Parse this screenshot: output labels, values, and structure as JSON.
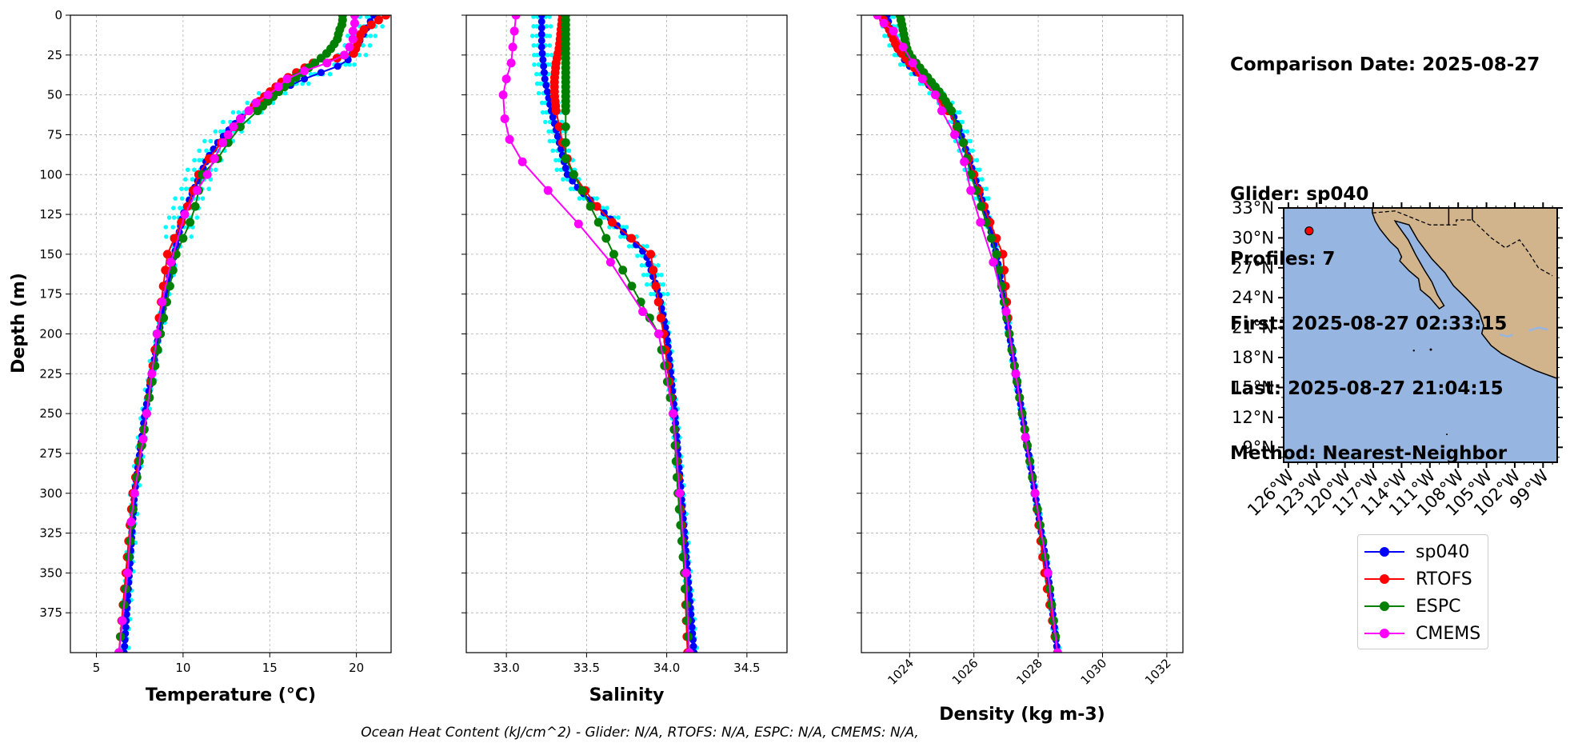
{
  "info": {
    "comparison_date": "Comparison Date: 2025-08-27",
    "glider": "Glider: sp040",
    "profiles": "Profiles: 7",
    "first": "First: 2025-08-27 02:33:15",
    "last": "Last: 2025-08-27 21:04:15",
    "method": "Method: Nearest-Neighbor"
  },
  "footer": "Ocean Heat Content (kJ/cm^2) - Glider: N/A,  RTOFS: N/A,  ESPC: N/A,  CMEMS: N/A,",
  "colors": {
    "glider_profiles": "#00ffff",
    "sp040": "#0000ff",
    "RTOFS": "#ff0000",
    "ESPC": "#008000",
    "CMEMS": "#ff00ff",
    "ocean": "#96b6e1",
    "land": "#d2b48c"
  },
  "legend": [
    "sp040",
    "RTOFS",
    "ESPC",
    "CMEMS"
  ],
  "chart_data": [
    {
      "type": "line",
      "xlabel": "Temperature (°C)",
      "ylabel": "Depth (m)",
      "xlim": [
        3.5,
        22
      ],
      "ylim": [
        400,
        0
      ],
      "xticks": [
        5,
        10,
        15,
        20
      ],
      "yticks": [
        0,
        25,
        50,
        75,
        100,
        125,
        150,
        175,
        200,
        225,
        250,
        275,
        300,
        325,
        350,
        375
      ],
      "grid": true,
      "series": [
        {
          "name": "sp040",
          "depth": [
            0,
            10,
            20,
            30,
            40,
            50,
            60,
            70,
            80,
            90,
            100,
            125,
            150,
            175,
            200,
            250,
            300,
            350,
            400
          ],
          "values": [
            21.0,
            20.5,
            20.0,
            19.4,
            17.0,
            15.0,
            13.8,
            12.8,
            12.0,
            11.4,
            11.0,
            10.0,
            9.5,
            9.0,
            8.6,
            7.8,
            7.2,
            6.9,
            6.6
          ]
        },
        {
          "name": "RTOFS",
          "depth": [
            0,
            10,
            20,
            25,
            30,
            40,
            50,
            60,
            70,
            80,
            90,
            100,
            125,
            150,
            200,
            250,
            300,
            350,
            400
          ],
          "values": [
            21.7,
            20.3,
            20.0,
            19.8,
            17.5,
            15.9,
            14.8,
            13.8,
            13.0,
            12.2,
            11.5,
            10.9,
            10.1,
            9.1,
            8.5,
            7.9,
            7.1,
            6.7,
            6.3
          ]
        },
        {
          "name": "ESPC",
          "depth": [
            0,
            5,
            10,
            15,
            20,
            25,
            30,
            40,
            50,
            60,
            70,
            80,
            90,
            100,
            125,
            150,
            200,
            250,
            300,
            350,
            400
          ],
          "values": [
            19.2,
            19.2,
            19.0,
            18.9,
            18.6,
            18.2,
            17.6,
            16.4,
            15.3,
            14.3,
            13.3,
            12.6,
            12.0,
            11.1,
            10.6,
            9.6,
            8.7,
            7.9,
            7.2,
            6.8,
            6.3
          ]
        },
        {
          "name": "CMEMS",
          "depth": [
            0,
            5,
            10,
            15,
            20,
            25,
            30,
            35,
            40,
            45,
            50,
            55,
            60,
            65,
            70,
            75,
            80,
            90,
            100,
            110,
            125,
            155,
            180,
            200,
            225,
            250,
            266,
            300,
            318,
            350,
            380,
            400
          ],
          "values": [
            19.9,
            19.9,
            19.8,
            19.8,
            19.6,
            19.3,
            18.3,
            17.0,
            16.0,
            15.5,
            14.9,
            14.2,
            13.8,
            13.3,
            12.9,
            12.6,
            12.3,
            11.8,
            11.4,
            10.8,
            10.1,
            9.3,
            8.8,
            8.5,
            8.2,
            7.9,
            7.7,
            7.2,
            7.0,
            6.8,
            6.5,
            6.3
          ]
        }
      ]
    },
    {
      "type": "line",
      "xlabel": "Salinity",
      "xlim": [
        32.75,
        34.75
      ],
      "ylim": [
        400,
        0
      ],
      "xticks": [
        33.0,
        33.5,
        34.0,
        34.5
      ],
      "grid": true,
      "series": [
        {
          "name": "sp040",
          "depth": [
            0,
            20,
            40,
            60,
            80,
            100,
            110,
            125,
            150,
            175,
            200,
            250,
            300,
            350,
            400
          ],
          "values": [
            33.22,
            33.22,
            33.24,
            33.28,
            33.33,
            33.38,
            33.46,
            33.62,
            33.87,
            33.95,
            34.0,
            34.05,
            34.09,
            34.13,
            34.17
          ]
        },
        {
          "name": "RTOFS",
          "depth": [
            0,
            10,
            20,
            30,
            40,
            50,
            60,
            70,
            80,
            90,
            100,
            125,
            150,
            200,
            250,
            300,
            350,
            400
          ],
          "values": [
            33.35,
            33.34,
            33.33,
            33.31,
            33.3,
            33.3,
            33.31,
            33.33,
            33.35,
            33.38,
            33.42,
            33.6,
            33.9,
            33.98,
            34.04,
            34.08,
            34.11,
            34.13
          ]
        },
        {
          "name": "ESPC",
          "depth": [
            0,
            10,
            20,
            30,
            40,
            50,
            60,
            70,
            80,
            90,
            100,
            125,
            150,
            200,
            250,
            300,
            350,
            400
          ],
          "values": [
            33.37,
            33.37,
            33.37,
            33.37,
            33.37,
            33.37,
            33.37,
            33.37,
            33.37,
            33.37,
            33.42,
            33.55,
            33.67,
            33.95,
            34.04,
            34.07,
            34.11,
            34.14
          ]
        },
        {
          "name": "CMEMS",
          "depth": [
            0,
            10,
            20,
            30,
            40,
            50,
            65,
            78,
            92,
            110,
            131,
            155,
            186,
            200,
            250,
            300,
            350,
            400
          ],
          "values": [
            33.06,
            33.05,
            33.04,
            33.03,
            33.0,
            32.98,
            32.99,
            33.02,
            33.1,
            33.26,
            33.45,
            33.65,
            33.85,
            33.95,
            34.04,
            34.08,
            34.12,
            34.14
          ]
        }
      ]
    },
    {
      "type": "line",
      "xlabel": "Density (kg m-3)",
      "xlim": [
        1022.5,
        1032.5
      ],
      "ylim": [
        400,
        0
      ],
      "xticks": [
        1024,
        1026,
        1028,
        1030,
        1032
      ],
      "grid": true,
      "series": [
        {
          "name": "sp040",
          "depth": [
            0,
            10,
            20,
            30,
            40,
            50,
            60,
            75,
            100,
            125,
            150,
            175,
            200,
            250,
            300,
            350,
            400
          ],
          "values": [
            1023.3,
            1023.4,
            1023.6,
            1023.9,
            1024.4,
            1024.9,
            1025.3,
            1025.6,
            1026.0,
            1026.4,
            1026.7,
            1026.9,
            1027.1,
            1027.5,
            1027.9,
            1028.3,
            1028.6
          ]
        },
        {
          "name": "RTOFS",
          "depth": [
            0,
            10,
            20,
            30,
            40,
            50,
            60,
            75,
            100,
            125,
            150,
            200,
            250,
            300,
            350,
            400
          ],
          "values": [
            1023.1,
            1023.4,
            1023.6,
            1024.0,
            1024.5,
            1024.9,
            1025.2,
            1025.6,
            1026.0,
            1026.4,
            1026.9,
            1027.1,
            1027.5,
            1027.9,
            1028.2,
            1028.6
          ]
        },
        {
          "name": "ESPC",
          "depth": [
            0,
            10,
            20,
            25,
            30,
            40,
            50,
            60,
            75,
            100,
            125,
            150,
            200,
            250,
            300,
            350,
            400
          ],
          "values": [
            1023.7,
            1023.8,
            1023.9,
            1024.0,
            1024.2,
            1024.6,
            1025.0,
            1025.3,
            1025.6,
            1025.9,
            1026.3,
            1026.7,
            1027.1,
            1027.5,
            1027.9,
            1028.3,
            1028.6
          ]
        },
        {
          "name": "CMEMS",
          "depth": [
            0,
            5,
            10,
            20,
            30,
            40,
            50,
            60,
            75,
            92,
            110,
            130,
            155,
            186,
            225,
            265,
            300,
            350,
            400
          ],
          "values": [
            1023.0,
            1023.2,
            1023.5,
            1023.8,
            1024.1,
            1024.4,
            1024.8,
            1025.0,
            1025.4,
            1025.7,
            1025.9,
            1026.2,
            1026.6,
            1027.0,
            1027.3,
            1027.6,
            1027.9,
            1028.3,
            1028.6
          ]
        }
      ]
    }
  ],
  "map": {
    "lat_labels": [
      "33°N",
      "30°N",
      "27°N",
      "24°N",
      "21°N",
      "18°N",
      "15°N",
      "12°N",
      "9°N"
    ],
    "lon_labels": [
      "126°W",
      "123°W",
      "120°W",
      "117°W",
      "114°W",
      "111°W",
      "108°W",
      "105°W",
      "102°W",
      "99°W"
    ],
    "glider_position": {
      "lon": -123.8,
      "lat": 30.7
    }
  }
}
